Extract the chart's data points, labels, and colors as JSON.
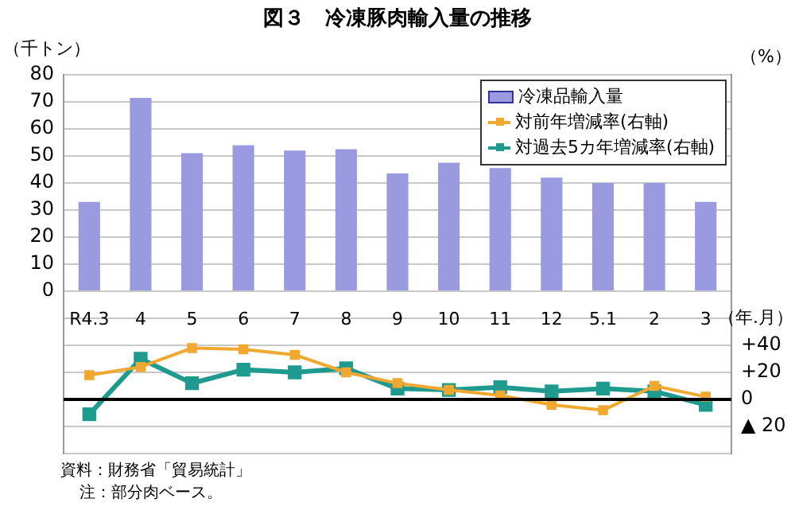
{
  "chart_data": {
    "type": "bar",
    "title": "図３　冷凍豚肉輸入量の推移",
    "xlabel": "（年.月）",
    "ylabel": "（千トン）",
    "y2label": "（%）",
    "categories": [
      "R4.3",
      "4",
      "5",
      "6",
      "7",
      "8",
      "9",
      "10",
      "11",
      "12",
      "5.1",
      "2",
      "3"
    ],
    "series": [
      {
        "name": "冷凍品輸入量",
        "color": "#9a9ae0",
        "values": [
          33,
          71.5,
          51,
          54,
          52,
          52.5,
          43.5,
          47.5,
          45.5,
          42,
          40,
          40,
          33
        ]
      },
      {
        "name": "対前年増減率(右軸)",
        "type": "line",
        "axis": "y2",
        "color": "#f0a830",
        "values": [
          18,
          24,
          38,
          37,
          33,
          20,
          12,
          7,
          3,
          -4,
          -8,
          10,
          2
        ]
      },
      {
        "name": "対過去5カ年増減率(右軸)",
        "type": "line",
        "axis": "y2",
        "color": "#1f9a8f",
        "values": [
          -11,
          30,
          12,
          22,
          20,
          23,
          8,
          7,
          9,
          6,
          8,
          6,
          -4
        ]
      }
    ],
    "ylim": [
      -60,
      80
    ],
    "yticks": [
      {
        "value": -60,
        "label": null
      },
      {
        "value": -50,
        "label": null
      },
      {
        "value": -40,
        "label": null
      },
      {
        "value": -30,
        "label": null
      },
      {
        "value": -20,
        "label": null
      },
      {
        "value": -10,
        "label": null
      },
      0,
      10,
      20,
      30,
      40,
      50,
      60,
      70,
      80
    ],
    "y2lim": [
      -40,
      240
    ],
    "y2ticks": [
      {
        "value": -20,
        "label": "▲ 20"
      },
      0,
      {
        "value": 20,
        "label": "+20"
      },
      {
        "value": 40,
        "label": "+40"
      }
    ],
    "ref_lines": [
      {
        "axis": "y2",
        "value": 0,
        "label": null,
        "color": "#000000"
      }
    ],
    "grid": "y",
    "legend": "top right",
    "marker": "square",
    "annotations": [
      "資料：財務省「貿易統計」",
      "注：部分肉ベース。"
    ]
  }
}
